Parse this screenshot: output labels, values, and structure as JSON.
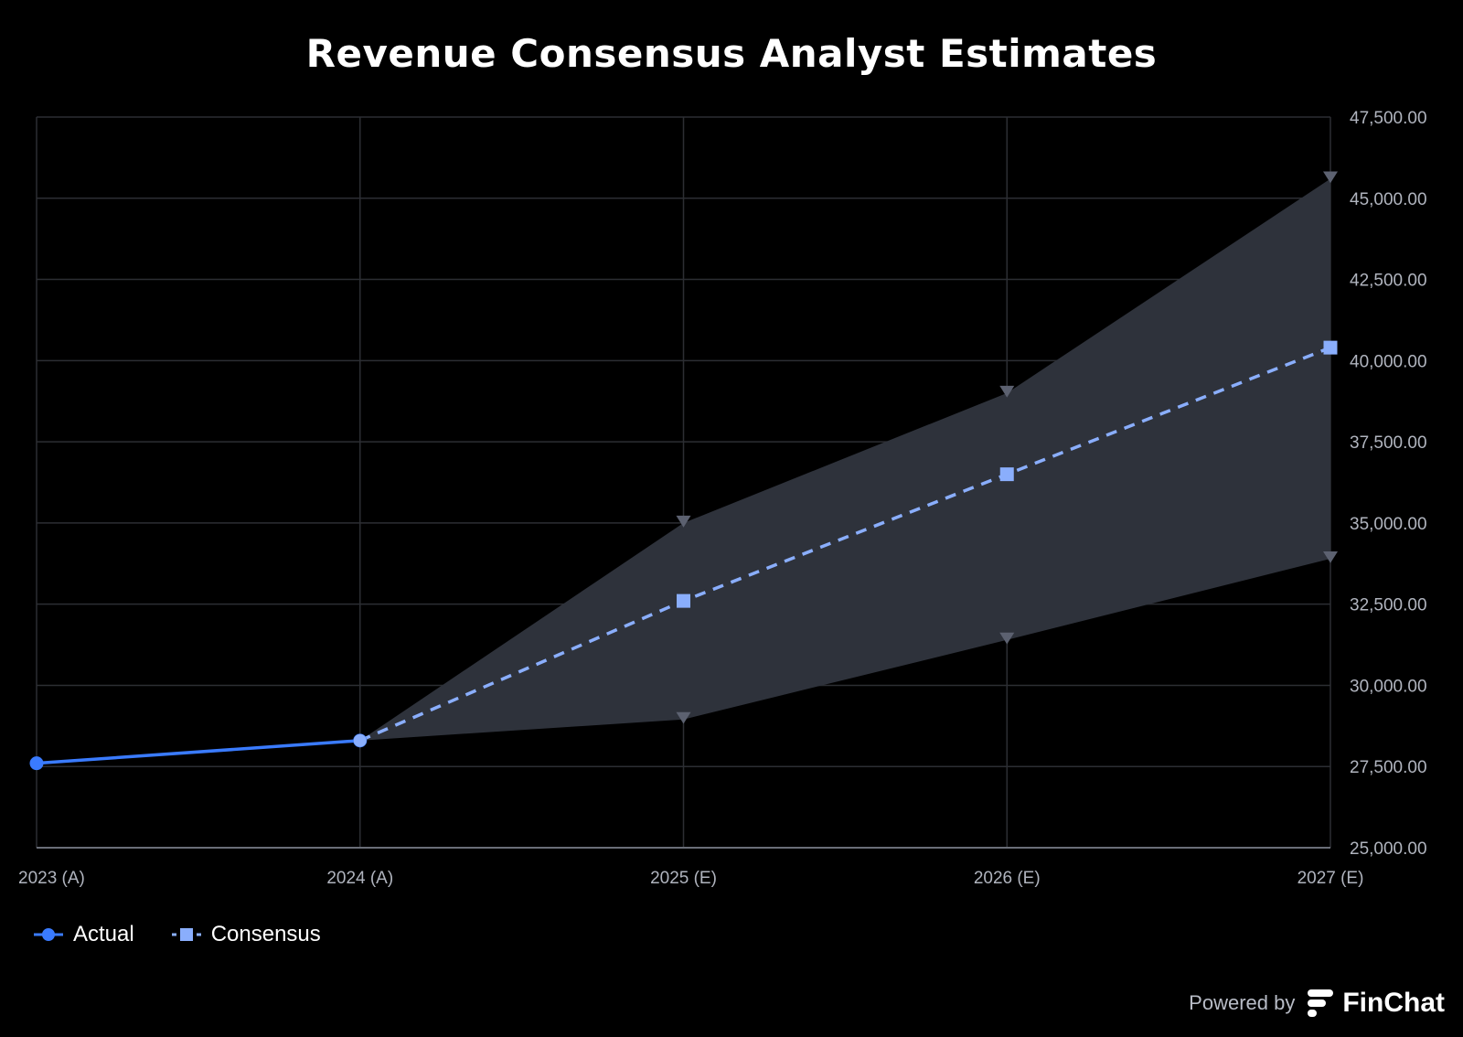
{
  "title": "Revenue Consensus Analyst Estimates",
  "colors": {
    "background": "#000000",
    "actual": "#3a7bff",
    "consensus": "#8aaefc",
    "range_fill": "#2e323b",
    "range_marker": "#5c6170",
    "grid": "#2c2e33",
    "axis_line": "#6a6e78",
    "tick_text": "#b0b4be"
  },
  "chart_data": {
    "type": "line",
    "categories": [
      "2023 (A)",
      "2024 (A)",
      "2025 (E)",
      "2026 (E)",
      "2027 (E)"
    ],
    "series": [
      {
        "name": "Actual",
        "values": [
          27600,
          28300,
          null,
          null,
          null
        ]
      },
      {
        "name": "Consensus",
        "values": [
          null,
          28300,
          32600,
          36500,
          40400
        ]
      }
    ],
    "range": {
      "high": [
        null,
        28300,
        35000,
        39000,
        45600
      ],
      "low": [
        null,
        28300,
        28950,
        31400,
        33900
      ]
    },
    "ylim": [
      25000,
      47500
    ],
    "yticks": [
      25000,
      27500,
      30000,
      32500,
      35000,
      37500,
      40000,
      42500,
      45000,
      47500
    ],
    "ytick_labels": [
      "25,000.00",
      "27,500.00",
      "30,000.00",
      "32,500.00",
      "35,000.00",
      "37,500.00",
      "40,000.00",
      "42,500.00",
      "45,000.00",
      "47,500.00"
    ],
    "xlabel": "",
    "ylabel": "",
    "y_axis_side": "right",
    "grid": true,
    "legend_position": "bottom-left"
  },
  "legend": [
    {
      "label": "Actual",
      "marker": "circle"
    },
    {
      "label": "Consensus",
      "marker": "square"
    }
  ],
  "footer": {
    "powered_by": "Powered by",
    "brand": "FinChat"
  }
}
